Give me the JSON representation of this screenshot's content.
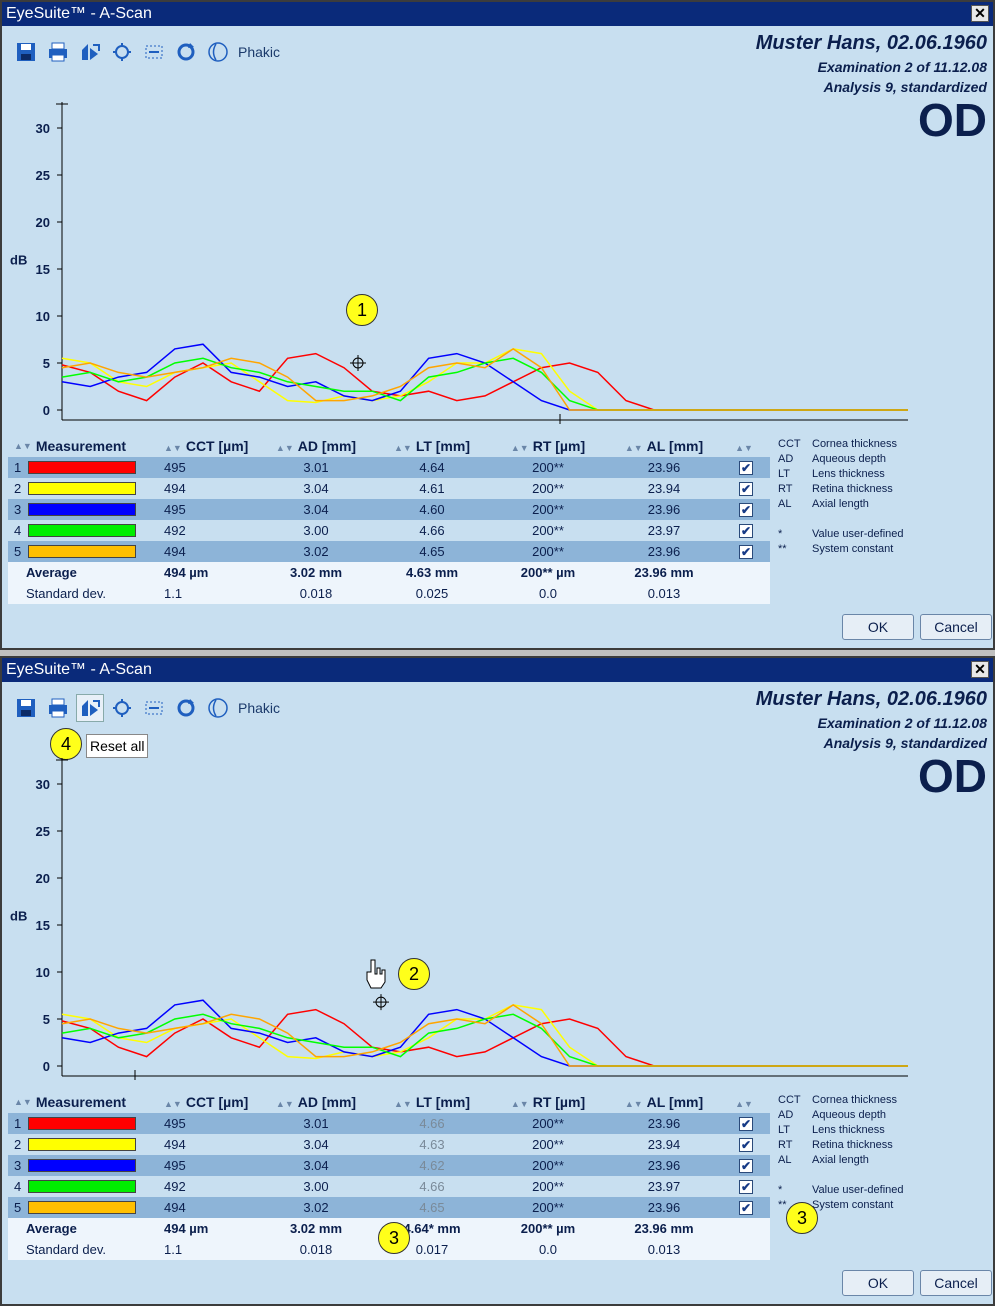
{
  "window_title": "EyeSuite™ - A-Scan",
  "close_label": "✕",
  "phakic_label": "Phakic",
  "patient": {
    "name": "Muster Hans,  02.06.1960",
    "examination": "Examination 2 of 11.12.08",
    "analysis": "Analysis 9, standardized",
    "eye": "OD"
  },
  "chart_axis": {
    "ylabel": "dB",
    "ticks": [
      "30",
      "25",
      "20",
      "15",
      "10",
      "5",
      "0"
    ]
  },
  "chart_data": {
    "type": "line",
    "ylabel": "dB",
    "ylim": [
      0,
      32
    ],
    "series": [
      {
        "name": "1",
        "color": "#ff0000",
        "points": [
          [
            0,
            4.8
          ],
          [
            1,
            4.0
          ],
          [
            2,
            2.0
          ],
          [
            3,
            1.0
          ],
          [
            4,
            3.5
          ],
          [
            5,
            5.0
          ],
          [
            6,
            3.0
          ],
          [
            7,
            2.0
          ],
          [
            8,
            5.5
          ],
          [
            9,
            6.0
          ],
          [
            10,
            4.5
          ],
          [
            11,
            2.0
          ],
          [
            12,
            1.5
          ],
          [
            13,
            2.0
          ],
          [
            14,
            1.0
          ],
          [
            15,
            1.5
          ],
          [
            16,
            3.0
          ],
          [
            17,
            4.5
          ],
          [
            18,
            5.0
          ],
          [
            19,
            4.0
          ],
          [
            20,
            1.0
          ],
          [
            21,
            0
          ],
          [
            30,
            0
          ]
        ]
      },
      {
        "name": "2",
        "color": "#ffff00",
        "points": [
          [
            0,
            5.5
          ],
          [
            1,
            5.0
          ],
          [
            2,
            3.0
          ],
          [
            3,
            2.5
          ],
          [
            4,
            4.0
          ],
          [
            5,
            4.5
          ],
          [
            6,
            5.0
          ],
          [
            7,
            3.0
          ],
          [
            8,
            1.0
          ],
          [
            9,
            0.8
          ],
          [
            10,
            1.5
          ],
          [
            11,
            1.0
          ],
          [
            12,
            1.5
          ],
          [
            13,
            3.0
          ],
          [
            14,
            5.0
          ],
          [
            15,
            5.0
          ],
          [
            16,
            6.5
          ],
          [
            17,
            6.0
          ],
          [
            18,
            2.0
          ],
          [
            19,
            0
          ],
          [
            30,
            0
          ]
        ]
      },
      {
        "name": "3",
        "color": "#0000ff",
        "points": [
          [
            0,
            3.0
          ],
          [
            1,
            2.5
          ],
          [
            2,
            3.5
          ],
          [
            3,
            4.0
          ],
          [
            4,
            6.5
          ],
          [
            5,
            7.0
          ],
          [
            6,
            4.0
          ],
          [
            7,
            3.5
          ],
          [
            8,
            2.5
          ],
          [
            9,
            3.0
          ],
          [
            10,
            1.5
          ],
          [
            11,
            1.0
          ],
          [
            12,
            2.0
          ],
          [
            13,
            5.5
          ],
          [
            14,
            6.0
          ],
          [
            15,
            5.0
          ],
          [
            16,
            3.0
          ],
          [
            17,
            1.0
          ],
          [
            18,
            0
          ],
          [
            30,
            0
          ]
        ]
      },
      {
        "name": "4",
        "color": "#00ff00",
        "points": [
          [
            0,
            3.5
          ],
          [
            1,
            4.0
          ],
          [
            2,
            3.0
          ],
          [
            3,
            3.5
          ],
          [
            4,
            5.0
          ],
          [
            5,
            5.5
          ],
          [
            6,
            4.5
          ],
          [
            7,
            4.0
          ],
          [
            8,
            3.0
          ],
          [
            9,
            2.5
          ],
          [
            10,
            2.0
          ],
          [
            11,
            2.0
          ],
          [
            12,
            1.0
          ],
          [
            13,
            3.5
          ],
          [
            14,
            4.0
          ],
          [
            15,
            5.0
          ],
          [
            16,
            5.5
          ],
          [
            17,
            4.0
          ],
          [
            18,
            1.0
          ],
          [
            19,
            0
          ],
          [
            30,
            0
          ]
        ]
      },
      {
        "name": "5",
        "color": "#ffa500",
        "points": [
          [
            0,
            4.5
          ],
          [
            1,
            5.0
          ],
          [
            2,
            4.0
          ],
          [
            3,
            3.5
          ],
          [
            4,
            4.0
          ],
          [
            5,
            4.5
          ],
          [
            6,
            5.5
          ],
          [
            7,
            5.0
          ],
          [
            8,
            3.5
          ],
          [
            9,
            1.0
          ],
          [
            10,
            1.0
          ],
          [
            11,
            1.5
          ],
          [
            12,
            2.5
          ],
          [
            13,
            4.5
          ],
          [
            14,
            5.0
          ],
          [
            15,
            4.5
          ],
          [
            16,
            6.5
          ],
          [
            17,
            4.5
          ],
          [
            18,
            0
          ],
          [
            30,
            0
          ]
        ]
      }
    ]
  },
  "table": {
    "headers": [
      "Measurement",
      "CCT [µm]",
      "AD [mm]",
      "LT [mm]",
      "RT [µm]",
      "AL [mm]"
    ],
    "rows_top": [
      {
        "idx": "1",
        "color": "#ff0000",
        "cct": "495",
        "ad": "3.01",
        "lt": "4.64",
        "rt": "200**",
        "al": "23.96"
      },
      {
        "idx": "2",
        "color": "#ffff00",
        "cct": "494",
        "ad": "3.04",
        "lt": "4.61",
        "rt": "200**",
        "al": "23.94"
      },
      {
        "idx": "3",
        "color": "#0000ff",
        "cct": "495",
        "ad": "3.04",
        "lt": "4.60",
        "rt": "200**",
        "al": "23.96"
      },
      {
        "idx": "4",
        "color": "#00ee00",
        "cct": "492",
        "ad": "3.00",
        "lt": "4.66",
        "rt": "200**",
        "al": "23.97"
      },
      {
        "idx": "5",
        "color": "#ffbf00",
        "cct": "494",
        "ad": "3.02",
        "lt": "4.65",
        "rt": "200**",
        "al": "23.96"
      }
    ],
    "avg_top": {
      "label": "Average",
      "cct": "494 µm",
      "ad": "3.02 mm",
      "lt": "4.63 mm",
      "rt": "200** µm",
      "al": "23.96 mm"
    },
    "std_top": {
      "label": "Standard dev.",
      "cct": "1.1",
      "ad": "0.018",
      "lt": "0.025",
      "rt": "0.0",
      "al": "0.013"
    },
    "rows_bottom": [
      {
        "idx": "1",
        "color": "#ff0000",
        "cct": "495",
        "ad": "3.01",
        "lt": "4.66",
        "rt": "200**",
        "al": "23.96"
      },
      {
        "idx": "2",
        "color": "#ffff00",
        "cct": "494",
        "ad": "3.04",
        "lt": "4.63",
        "rt": "200**",
        "al": "23.94"
      },
      {
        "idx": "3",
        "color": "#0000ff",
        "cct": "495",
        "ad": "3.04",
        "lt": "4.62",
        "rt": "200**",
        "al": "23.96"
      },
      {
        "idx": "4",
        "color": "#00ee00",
        "cct": "492",
        "ad": "3.00",
        "lt": "4.66",
        "rt": "200**",
        "al": "23.97"
      },
      {
        "idx": "5",
        "color": "#ffbf00",
        "cct": "494",
        "ad": "3.02",
        "lt": "4.65",
        "rt": "200**",
        "al": "23.96"
      }
    ],
    "avg_bottom": {
      "label": "Average",
      "cct": "494 µm",
      "ad": "3.02 mm",
      "lt": "4.64* mm",
      "rt": "200** µm",
      "al": "23.96 mm"
    },
    "std_bottom": {
      "label": "Standard dev.",
      "cct": "1.1",
      "ad": "0.018",
      "lt": "0.017",
      "rt": "0.0",
      "al": "0.013"
    }
  },
  "legend": [
    {
      "k": "CCT",
      "v": "Cornea thickness"
    },
    {
      "k": "AD",
      "v": "Aqueous depth"
    },
    {
      "k": "LT",
      "v": "Lens thickness"
    },
    {
      "k": "RT",
      "v": "Retina thickness"
    },
    {
      "k": "AL",
      "v": "Axial length"
    },
    {
      "k": "",
      "v": ""
    },
    {
      "k": "*",
      "v": "Value user-defined"
    },
    {
      "k": "**",
      "v": "System constant"
    }
  ],
  "buttons": {
    "ok": "OK",
    "cancel": "Cancel"
  },
  "tooltip": "Reset all",
  "callouts": {
    "c1": "1",
    "c2": "2",
    "c3": "3",
    "c4": "4"
  },
  "checkmark": "✔"
}
